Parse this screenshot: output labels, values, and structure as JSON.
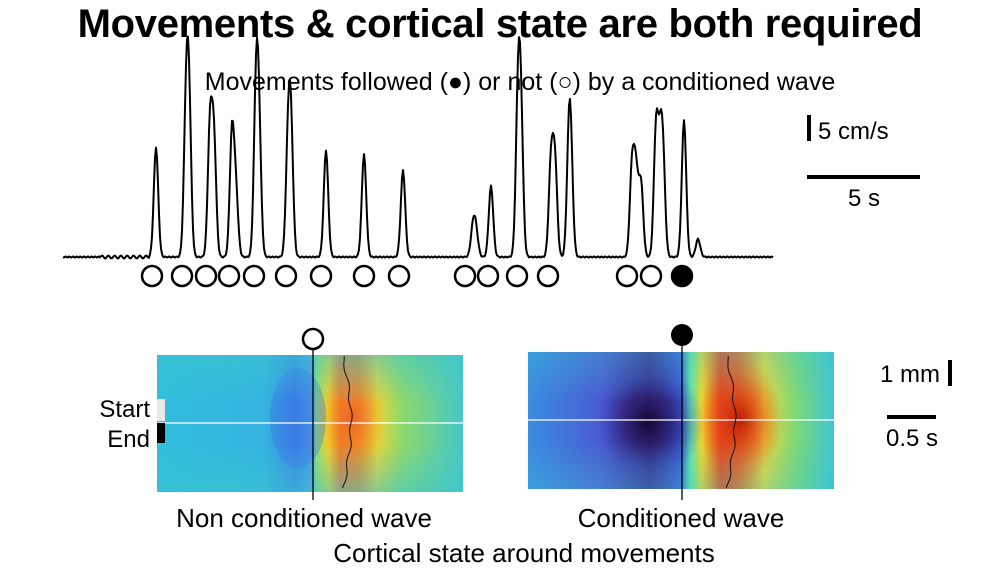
{
  "title": "Movements & cortical state are both required",
  "trace": {
    "legend": "Movements followed (●) or not (○) by a conditioned wave",
    "movements": [
      {
        "conditioned": false
      },
      {
        "conditioned": false
      },
      {
        "conditioned": false
      },
      {
        "conditioned": false
      },
      {
        "conditioned": false
      },
      {
        "conditioned": false
      },
      {
        "conditioned": false
      },
      {
        "conditioned": false
      },
      {
        "conditioned": false
      },
      {
        "conditioned": false
      },
      {
        "conditioned": false
      },
      {
        "conditioned": false
      },
      {
        "conditioned": false
      },
      {
        "conditioned": false
      },
      {
        "conditioned": false
      },
      {
        "conditioned": true
      }
    ]
  },
  "scale_bars": {
    "speed": "5 cm/s",
    "time_trace": "5 s",
    "distance": "1 mm",
    "time_map": "0.5 s"
  },
  "markers": {
    "start": "Start",
    "end": "End"
  },
  "panels": {
    "non_conditioned": {
      "caption": "Non conditioned wave",
      "conditioned": false
    },
    "conditioned": {
      "caption": "Conditioned wave",
      "conditioned": true
    }
  },
  "footer": "Cortical state around movements",
  "colors": {
    "background": "#ffffff",
    "ink": "#000000",
    "map_base": "#2fb8d8",
    "map_warm": "#e8562a",
    "map_dark": "#1a0a3a"
  }
}
